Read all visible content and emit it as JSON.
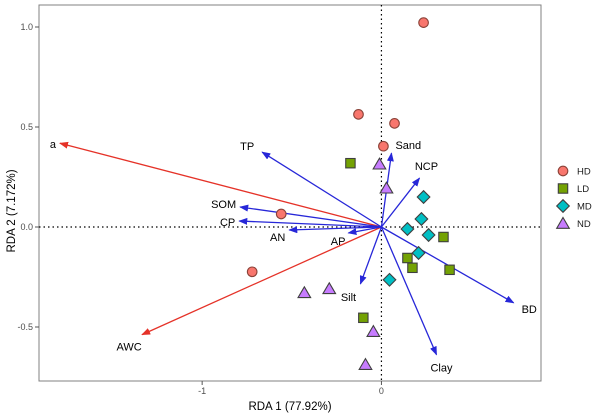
{
  "figure": {
    "background": "#ffffff",
    "panel_border_color": "#818181",
    "tick_label_color": "#4d4d4d",
    "zero_line_color": "#000000",
    "label_color": "#000000"
  },
  "chart_data": {
    "type": "scatter",
    "title": "",
    "xlabel": "RDA 1 (77.92%)",
    "ylabel": "RDA 2 (7.172%)",
    "xlim": [
      -1.91,
      0.89
    ],
    "ylim": [
      -0.77,
      1.11
    ],
    "grid": "off",
    "zero_lines": "dotted",
    "x_ticks": [
      {
        "value": -1,
        "label": "-1"
      },
      {
        "value": 0,
        "label": "0"
      }
    ],
    "y_ticks": [
      {
        "value": 1.0,
        "label": "1.0"
      },
      {
        "value": 0.5,
        "label": "0.5"
      },
      {
        "value": 0.0,
        "label": "0.0"
      },
      {
        "value": -0.5,
        "label": "-0.5"
      }
    ],
    "legend_position": "right-outside",
    "groups": [
      {
        "name": "HD",
        "shape": "circle",
        "fill": "#f8766d",
        "stroke": "#8a4238",
        "points": [
          [
            0.235,
            1.022
          ],
          [
            -0.128,
            0.563
          ],
          [
            0.073,
            0.518
          ],
          [
            0.011,
            0.404
          ],
          [
            -0.559,
            0.065
          ],
          [
            -0.721,
            -0.224
          ]
        ]
      },
      {
        "name": "LD",
        "shape": "square",
        "fill": "#74a203",
        "stroke": "#3f3f3f",
        "points": [
          [
            -0.173,
            0.319
          ],
          [
            0.346,
            -0.05
          ],
          [
            0.145,
            -0.155
          ],
          [
            0.173,
            -0.204
          ],
          [
            0.38,
            -0.214
          ],
          [
            -0.101,
            -0.454
          ]
        ]
      },
      {
        "name": "MD",
        "shape": "diamond",
        "fill": "#00bfc4",
        "stroke": "#3f3f3f",
        "points": [
          [
            0.235,
            0.15
          ],
          [
            0.223,
            0.04
          ],
          [
            0.145,
            -0.01
          ],
          [
            0.263,
            -0.04
          ],
          [
            0.207,
            -0.13
          ],
          [
            0.045,
            -0.264
          ]
        ]
      },
      {
        "name": "ND",
        "shape": "triangle",
        "fill": "#c77cff",
        "stroke": "#3f3f3f",
        "points": [
          [
            -0.011,
            0.314
          ],
          [
            0.028,
            0.194
          ],
          [
            -0.43,
            -0.329
          ],
          [
            -0.291,
            -0.309
          ],
          [
            -0.045,
            -0.523
          ],
          [
            -0.089,
            -0.688
          ]
        ]
      }
    ],
    "vectors": [
      {
        "label": "a",
        "color": "#e53228",
        "x": -1.793,
        "y": 0.419,
        "dx": -4,
        "dy": 5,
        "anchor": "end"
      },
      {
        "label": "AWC",
        "color": "#e53228",
        "x": -1.335,
        "y": -0.538,
        "dx": -13,
        "dy": 16,
        "anchor": "middle"
      },
      {
        "label": "TP",
        "color": "#2727d8",
        "x": -0.665,
        "y": 0.374,
        "dx": -8,
        "dy": -2,
        "anchor": "end"
      },
      {
        "label": "Sand",
        "color": "#2727d8",
        "x": 0.056,
        "y": 0.369,
        "dx": 4,
        "dy": -4,
        "anchor": "start"
      },
      {
        "label": "NCP",
        "color": "#2727d8",
        "x": 0.212,
        "y": 0.244,
        "dx": 7,
        "dy": -8,
        "anchor": "middle"
      },
      {
        "label": "SOM",
        "color": "#2727d8",
        "x": -0.788,
        "y": 0.1,
        "dx": -4,
        "dy": 1,
        "anchor": "end"
      },
      {
        "label": "CP",
        "color": "#2727d8",
        "x": -0.793,
        "y": 0.03,
        "dx": -4,
        "dy": 5,
        "anchor": "end"
      },
      {
        "label": "AN",
        "color": "#2727d8",
        "x": -0.514,
        "y": -0.015,
        "dx": -4,
        "dy": 11,
        "anchor": "end"
      },
      {
        "label": "AP",
        "color": "#2727d8",
        "x": -0.184,
        "y": -0.03,
        "dx": -3,
        "dy": 12,
        "anchor": "end"
      },
      {
        "label": "Silt",
        "color": "#2727d8",
        "x": -0.117,
        "y": -0.284,
        "dx": -12,
        "dy": 17,
        "anchor": "middle"
      },
      {
        "label": "Clay",
        "color": "#2727d8",
        "x": 0.307,
        "y": -0.638,
        "dx": 5,
        "dy": 17,
        "anchor": "middle"
      },
      {
        "label": "BD",
        "color": "#2727d8",
        "x": 0.737,
        "y": -0.379,
        "dx": 8,
        "dy": 10,
        "anchor": "start"
      }
    ]
  }
}
